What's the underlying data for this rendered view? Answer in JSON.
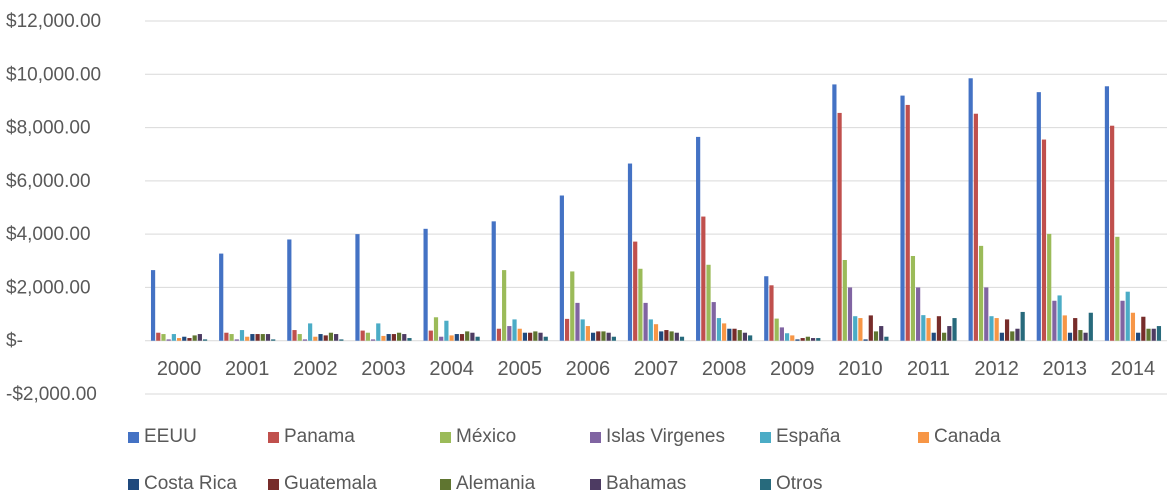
{
  "chart_data": {
    "type": "bar",
    "title": "",
    "xlabel": "",
    "ylabel": "",
    "ylim": [
      -2000,
      12000
    ],
    "yticks": [
      {
        "value": 12000,
        "label": "$12,000.00"
      },
      {
        "value": 10000,
        "label": "$10,000.00"
      },
      {
        "value": 8000,
        "label": "$8,000.00"
      },
      {
        "value": 6000,
        "label": "$6,000.00"
      },
      {
        "value": 4000,
        "label": "$4,000.00"
      },
      {
        "value": 2000,
        "label": "$2,000.00"
      },
      {
        "value": 0,
        "label": "$-"
      },
      {
        "value": -2000,
        "label": "-$2,000.00"
      }
    ],
    "grid": true,
    "legend_position": "bottom",
    "categories": [
      "2000",
      "2001",
      "2002",
      "2003",
      "2004",
      "2005",
      "2006",
      "2007",
      "2008",
      "2009",
      "2010",
      "2011",
      "2012",
      "2013",
      "2014"
    ],
    "series": [
      {
        "name": "EEUU",
        "color": "#4472C4",
        "values": [
          2650,
          3270,
          3800,
          4000,
          4200,
          4480,
          5450,
          6650,
          7650,
          2420,
          9620,
          9200,
          9850,
          9330,
          9550
        ]
      },
      {
        "name": "Panama",
        "color": "#C0504D",
        "values": [
          300,
          300,
          400,
          380,
          380,
          450,
          820,
          3720,
          4660,
          2080,
          8550,
          8850,
          8520,
          7550,
          8070
        ]
      },
      {
        "name": "México",
        "color": "#9BBB59",
        "values": [
          250,
          250,
          250,
          300,
          880,
          2650,
          2600,
          2700,
          2850,
          830,
          3030,
          3180,
          3560,
          4010,
          3900
        ]
      },
      {
        "name": "Islas Virgenes",
        "color": "#8064A2",
        "values": [
          50,
          50,
          50,
          50,
          150,
          550,
          1420,
          1420,
          1450,
          500,
          2000,
          2000,
          2000,
          1500,
          1500
        ]
      },
      {
        "name": "España",
        "color": "#4BACC6",
        "values": [
          250,
          400,
          650,
          650,
          750,
          800,
          800,
          800,
          850,
          280,
          920,
          960,
          920,
          1700,
          1840
        ]
      },
      {
        "name": "Canada",
        "color": "#F79646",
        "values": [
          100,
          150,
          150,
          180,
          200,
          450,
          550,
          620,
          650,
          200,
          850,
          850,
          850,
          950,
          1050
        ]
      },
      {
        "name": "Costa Rica",
        "color": "#1F497D",
        "values": [
          150,
          250,
          250,
          250,
          250,
          300,
          300,
          350,
          450,
          50,
          50,
          300,
          300,
          300,
          300
        ]
      },
      {
        "name": "Guatemala",
        "color": "#772C2A",
        "values": [
          100,
          250,
          200,
          250,
          250,
          300,
          350,
          400,
          450,
          100,
          950,
          920,
          800,
          850,
          900
        ]
      },
      {
        "name": "Alemania",
        "color": "#5F7530",
        "values": [
          200,
          250,
          300,
          300,
          350,
          350,
          350,
          350,
          400,
          150,
          350,
          300,
          350,
          400,
          450
        ]
      },
      {
        "name": "Bahamas",
        "color": "#4D3B62",
        "values": [
          250,
          250,
          250,
          250,
          300,
          300,
          300,
          300,
          300,
          100,
          550,
          550,
          450,
          300,
          450
        ]
      },
      {
        "name": "Otros",
        "color": "#276A7C",
        "values": [
          50,
          50,
          50,
          100,
          150,
          150,
          150,
          150,
          200,
          100,
          150,
          850,
          1080,
          1050,
          550
        ]
      }
    ]
  }
}
